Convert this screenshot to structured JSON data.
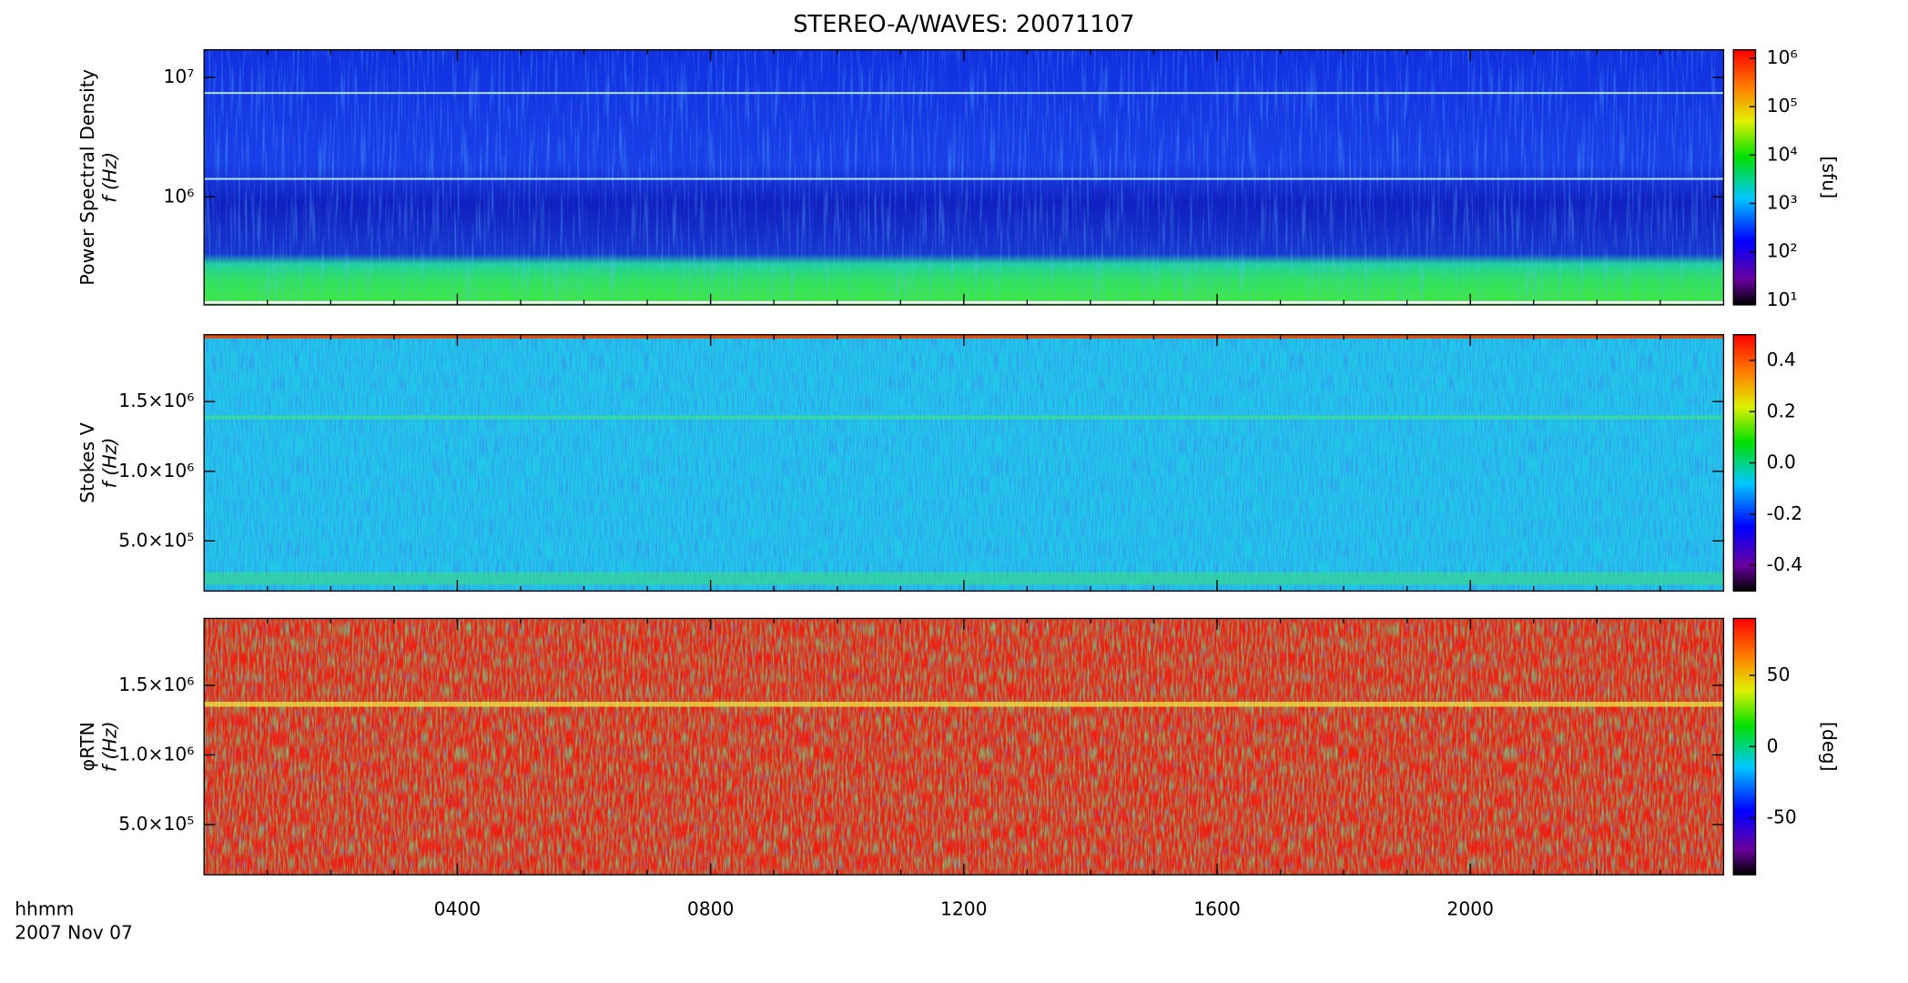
{
  "chart_data": [
    {
      "type": "heatmap",
      "title": "STEREO-A/WAVES: 20071107",
      "ylabel": [
        "Power Spectral Density",
        "f (Hz)"
      ],
      "ylog": true,
      "ylim": [
        125000,
        17000000
      ],
      "yticks": [
        {
          "value": 1000000,
          "label": "10⁶"
        },
        {
          "value": 10000000,
          "label": "10⁷"
        }
      ],
      "xlim": [
        0,
        24
      ],
      "zlabel": "[sfu]",
      "zlog": true,
      "zlim": [
        8,
        1500000
      ],
      "zticks": [
        {
          "value": 10,
          "label": "10¹"
        },
        {
          "value": 100,
          "label": "10²"
        },
        {
          "value": 1000,
          "label": "10³"
        },
        {
          "value": 10000,
          "label": "10⁴"
        },
        {
          "value": 100000,
          "label": "10⁵"
        },
        {
          "value": 1000000,
          "label": "10⁶"
        }
      ]
    },
    {
      "type": "heatmap",
      "ylabel": [
        "Stokes V",
        "f (Hz)"
      ],
      "ylim": [
        140000,
        1980000
      ],
      "yticks": [
        {
          "value": 500000,
          "label": "5.0×10⁵"
        },
        {
          "value": 1000000,
          "label": "1.0×10⁶"
        },
        {
          "value": 1500000,
          "label": "1.5×10⁶"
        }
      ],
      "xlim": [
        0,
        24
      ],
      "zlim": [
        -0.5,
        0.5
      ],
      "zticks": [
        -0.4,
        -0.2,
        {
          "value": 0,
          "label": "0.0"
        },
        0.2,
        0.4
      ]
    },
    {
      "type": "heatmap",
      "ylabel": [
        "φRTN",
        "f (Hz)"
      ],
      "ylim": [
        140000,
        1980000
      ],
      "yticks": [
        {
          "value": 500000,
          "label": "5.0×10⁵"
        },
        {
          "value": 1000000,
          "label": "1.0×10⁶"
        },
        {
          "value": 1500000,
          "label": "1.5×10⁶"
        }
      ],
      "xlim": [
        0,
        24
      ],
      "xlabel": "hhmm",
      "date": "2007 Nov 07",
      "xticks": [
        {
          "value": 4,
          "label": "0400"
        },
        {
          "value": 8,
          "label": "0800"
        },
        {
          "value": 12,
          "label": "1200"
        },
        {
          "value": 16,
          "label": "1600"
        },
        {
          "value": 20,
          "label": "2000"
        }
      ],
      "zlabel": "[deg]",
      "zlim": [
        -90,
        90
      ],
      "zticks": [
        -50,
        0,
        50
      ]
    }
  ]
}
